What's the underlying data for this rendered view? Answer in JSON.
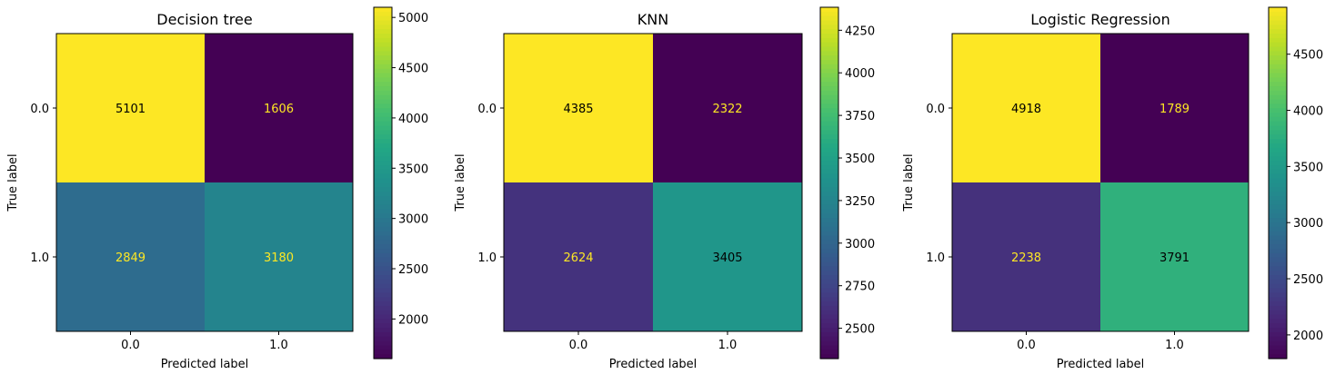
{
  "chart_data": [
    {
      "type": "heatmap",
      "title": "Decision tree",
      "xlabel": "Predicted label",
      "ylabel": "True label",
      "x_categories": [
        "0.0",
        "1.0"
      ],
      "y_categories": [
        "0.0",
        "1.0"
      ],
      "values": [
        [
          5101,
          1606
        ],
        [
          2849,
          3180
        ]
      ],
      "colormap": "viridis",
      "colorbar_ticks": [
        2000,
        2500,
        3000,
        3500,
        4000,
        4500,
        5000
      ]
    },
    {
      "type": "heatmap",
      "title": "KNN",
      "xlabel": "Predicted label",
      "ylabel": "True label",
      "x_categories": [
        "0.0",
        "1.0"
      ],
      "y_categories": [
        "0.0",
        "1.0"
      ],
      "values": [
        [
          4385,
          2322
        ],
        [
          2624,
          3405
        ]
      ],
      "colormap": "viridis",
      "colorbar_ticks": [
        2500,
        2750,
        3000,
        3250,
        3500,
        3750,
        4000,
        4250
      ]
    },
    {
      "type": "heatmap",
      "title": "Logistic Regression",
      "xlabel": "Predicted label",
      "ylabel": "True label",
      "x_categories": [
        "0.0",
        "1.0"
      ],
      "y_categories": [
        "0.0",
        "1.0"
      ],
      "values": [
        [
          4918,
          1789
        ],
        [
          2238,
          3791
        ]
      ],
      "colormap": "viridis",
      "colorbar_ticks": [
        2000,
        2500,
        3000,
        3500,
        4000,
        4500
      ]
    }
  ]
}
